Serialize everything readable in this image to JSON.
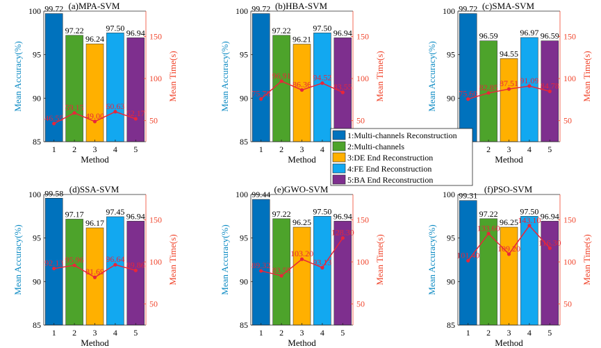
{
  "colors": {
    "bars": [
      "#0072BD",
      "#4DA32B",
      "#FFB000",
      "#12A8F0",
      "#7E2F8E"
    ],
    "left_axis": "#0B8AC3",
    "right_axis": "#F0442B",
    "time_line": "#E8263A",
    "axis_box": "#262626"
  },
  "legend": {
    "items": [
      "1:Multi-channels Reconstruction",
      "2:Multi-channels",
      "3:DE End Reconstruction",
      "4:FE  End Reconstruction",
      "5:BA End Reconstruction"
    ]
  },
  "chart_data": [
    {
      "type": "bar",
      "title": "(a)MPA-SVM",
      "categories": [
        "1",
        "2",
        "3",
        "4",
        "5"
      ],
      "xlabel": "Method",
      "ylabel": "Mean Accuracy(%)",
      "y2label": "Mean Time(s)",
      "ylim": [
        85,
        100
      ],
      "yticks": [
        "85",
        "90",
        "95",
        "100"
      ],
      "y2lim": [
        25,
        180
      ],
      "y2ticks": [
        "50",
        "100",
        "150"
      ],
      "series": [
        {
          "name": "Mean Accuracy",
          "values": [
            99.72,
            97.22,
            96.24,
            97.5,
            96.94
          ],
          "labels": [
            "99.72",
            "97.22",
            "96.24",
            "97.50",
            "96.94"
          ]
        },
        {
          "name": "Mean Time",
          "type": "line",
          "axis": "right",
          "values": [
            46.55,
            59.15,
            49.0,
            60.63,
            52.17
          ],
          "labels": [
            "46.55",
            "59.15",
            "49.00",
            "60.63",
            "52.17"
          ]
        }
      ]
    },
    {
      "type": "bar",
      "title": "(b)HBA-SVM",
      "categories": [
        "1",
        "2",
        "3",
        "4",
        "5"
      ],
      "xlabel": "Method",
      "ylabel": "Mean Accuracy(%)",
      "y2label": "Mean Time(s)",
      "ylim": [
        85,
        100
      ],
      "yticks": [
        "85",
        "90",
        "95",
        "100"
      ],
      "y2lim": [
        25,
        180
      ],
      "y2ticks": [
        "50",
        "100",
        "150"
      ],
      "series": [
        {
          "name": "Mean Accuracy",
          "values": [
            99.72,
            97.22,
            96.21,
            97.5,
            96.94
          ],
          "labels": [
            "99.72",
            "97.22",
            "96.21",
            "97.50",
            "96.94"
          ]
        },
        {
          "name": "Mean Time",
          "type": "line",
          "axis": "right",
          "values": [
            75.78,
            96.91,
            86.36,
            94.52,
            83.55
          ],
          "labels": [
            "75.78",
            "96.91",
            "86.36",
            "94.52",
            "83.55"
          ]
        }
      ]
    },
    {
      "type": "bar",
      "title": "(c)SMA-SVM",
      "categories": [
        "1",
        "2",
        "3",
        "4",
        "5"
      ],
      "xlabel": "Method",
      "ylabel": "Mean Accuracy(%)",
      "y2label": "Mean Time(s)",
      "ylim": [
        85,
        100
      ],
      "yticks": [
        "85",
        "90",
        "95",
        "100"
      ],
      "y2lim": [
        25,
        180
      ],
      "y2ticks": [
        "50",
        "100",
        "150"
      ],
      "series": [
        {
          "name": "Mean Accuracy",
          "values": [
            99.72,
            96.59,
            94.55,
            96.97,
            96.59
          ],
          "labels": [
            "99.72",
            "96.59",
            "94.55",
            "96.97",
            "96.59"
          ]
        },
        {
          "name": "Mean Time",
          "type": "line",
          "axis": "right",
          "values": [
            75.6,
            82.85,
            87.51,
            91.09,
            84.78
          ],
          "labels": [
            "75.60",
            "82.85",
            "87.51",
            "91.09",
            "84.78"
          ]
        }
      ]
    },
    {
      "type": "bar",
      "title": "(d)SSA-SVM",
      "categories": [
        "1",
        "2",
        "3",
        "4",
        "5"
      ],
      "xlabel": "Method",
      "ylabel": "Mean Accuracy(%)",
      "y2label": "Mean Time(s)",
      "ylim": [
        85,
        100
      ],
      "yticks": [
        "85",
        "90",
        "95",
        "100"
      ],
      "y2lim": [
        25,
        180
      ],
      "y2ticks": [
        "50",
        "100",
        "150"
      ],
      "series": [
        {
          "name": "Mean Accuracy",
          "values": [
            99.58,
            97.17,
            96.17,
            97.45,
            96.94
          ],
          "labels": [
            "99.58",
            "97.17",
            "96.17",
            "97.45",
            "96.94"
          ]
        },
        {
          "name": "Mean Time",
          "type": "line",
          "axis": "right",
          "values": [
            92.13,
            95.96,
            81.69,
            96.64,
            89.86
          ],
          "labels": [
            "92.13",
            "95.96",
            "81.69",
            "96.64",
            "89.86"
          ]
        }
      ]
    },
    {
      "type": "bar",
      "title": "(e)GWO-SVM",
      "categories": [
        "1",
        "2",
        "3",
        "4",
        "5"
      ],
      "xlabel": "Method",
      "ylabel": "Mean Accuracy(%)",
      "y2label": "Mean Time(s)",
      "ylim": [
        85,
        100
      ],
      "yticks": [
        "85",
        "90",
        "95",
        "100"
      ],
      "y2lim": [
        25,
        180
      ],
      "y2ticks": [
        "50",
        "100",
        "150"
      ],
      "series": [
        {
          "name": "Mean Accuracy",
          "values": [
            99.44,
            97.22,
            96.25,
            97.5,
            96.94
          ],
          "labels": [
            "99.44",
            "97.22",
            "96.25",
            "97.50",
            "96.94"
          ]
        },
        {
          "name": "Mean Time",
          "type": "line",
          "axis": "right",
          "values": [
            89.32,
            83.55,
            103.2,
            93.13,
            128.3
          ],
          "labels": [
            "89.32",
            "83.55",
            "103.20",
            "93.13",
            "128.30"
          ]
        }
      ]
    },
    {
      "type": "bar",
      "title": "(f)PSO-SVM",
      "categories": [
        "1",
        "2",
        "3",
        "4",
        "5"
      ],
      "xlabel": "Method",
      "ylabel": "Mean Accuracy(%)",
      "y2label": "Mean Time(s)",
      "ylim": [
        85,
        100
      ],
      "yticks": [
        "85",
        "90",
        "95",
        "100"
      ],
      "y2lim": [
        25,
        180
      ],
      "y2ticks": [
        "50",
        "100",
        "150"
      ],
      "series": [
        {
          "name": "Mean Accuracy",
          "values": [
            99.31,
            97.22,
            96.25,
            97.5,
            96.94
          ],
          "labels": [
            "99.31",
            "97.22",
            "96.25",
            "97.50",
            "96.94"
          ]
        },
        {
          "name": "Mean Time",
          "type": "line",
          "axis": "right",
          "values": [
            101.4,
            133.6,
            109.2,
            143.1,
            116.3
          ],
          "labels": [
            "101.40",
            "133.60",
            "109.20",
            "143.10",
            "116.30"
          ]
        }
      ]
    }
  ]
}
